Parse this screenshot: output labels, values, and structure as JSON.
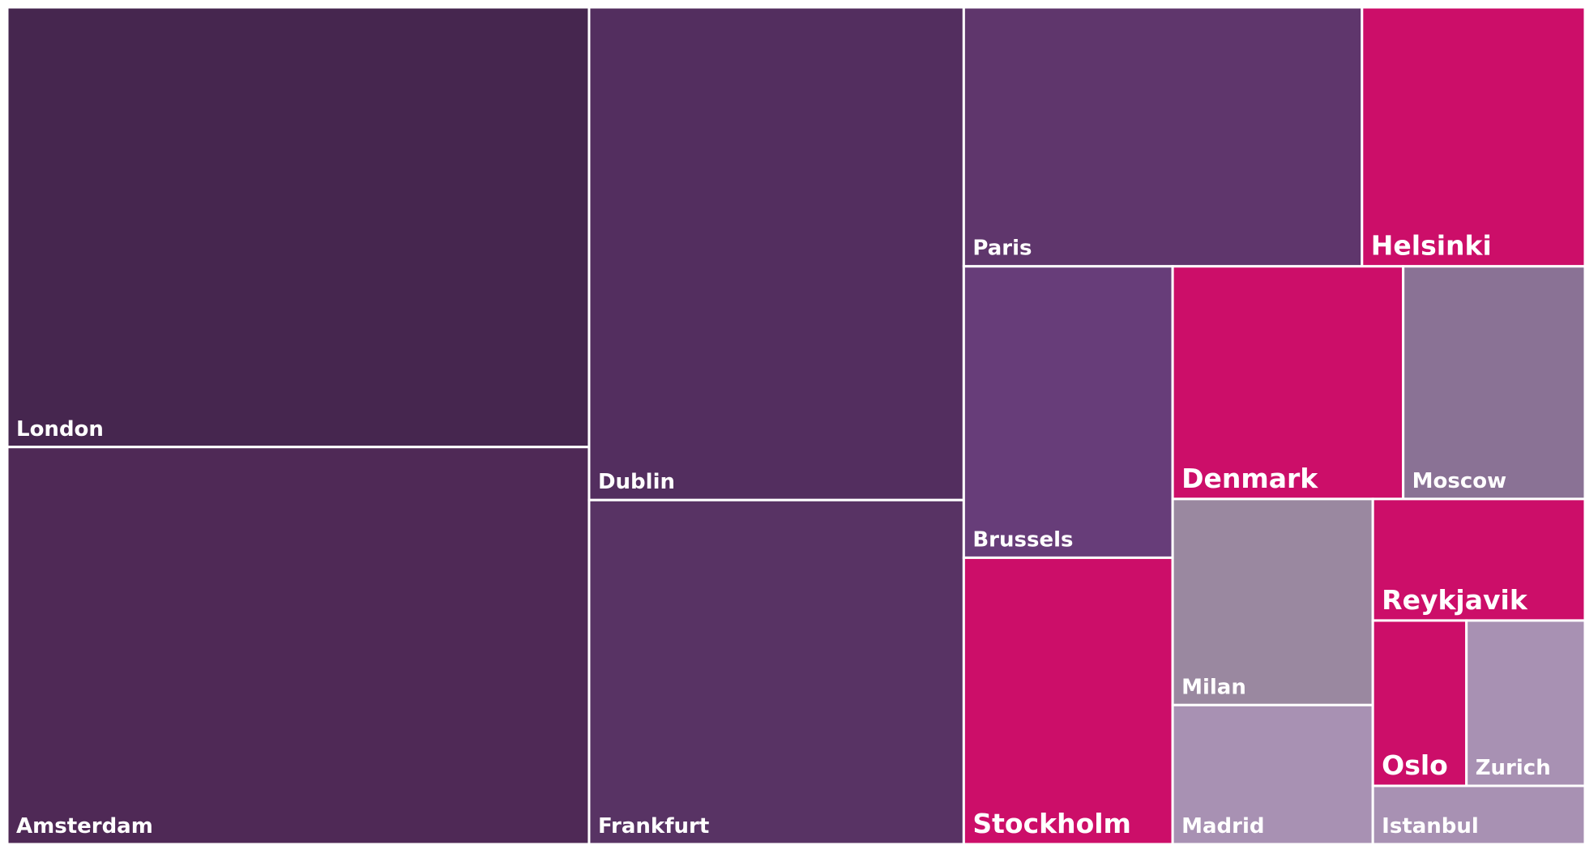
{
  "chart_data": {
    "type": "treemap",
    "categories": [
      "London",
      "Amsterdam",
      "Dublin",
      "Frankfurt",
      "Paris",
      "Helsinki",
      "Brussels",
      "Stockholm",
      "Denmark",
      "Moscow",
      "Milan",
      "Madrid",
      "Reykjavik",
      "Oslo",
      "Zurich",
      "Istanbul"
    ],
    "values": [
      248,
      224,
      179,
      125,
      100,
      56,
      59,
      58,
      52,
      41,
      40,
      27,
      25,
      15,
      19,
      12
    ],
    "colors": [
      "#46264f",
      "#4f2956",
      "#532e5f",
      "#583364",
      "#5f366c",
      "#cc0e69",
      "#673d79",
      "#cc0e69",
      "#cc0e69",
      "#8a7295",
      "#9a88a0",
      "#a891b3",
      "#cc0e69",
      "#cc0e69",
      "#a891b3",
      "#a891b3"
    ]
  }
}
